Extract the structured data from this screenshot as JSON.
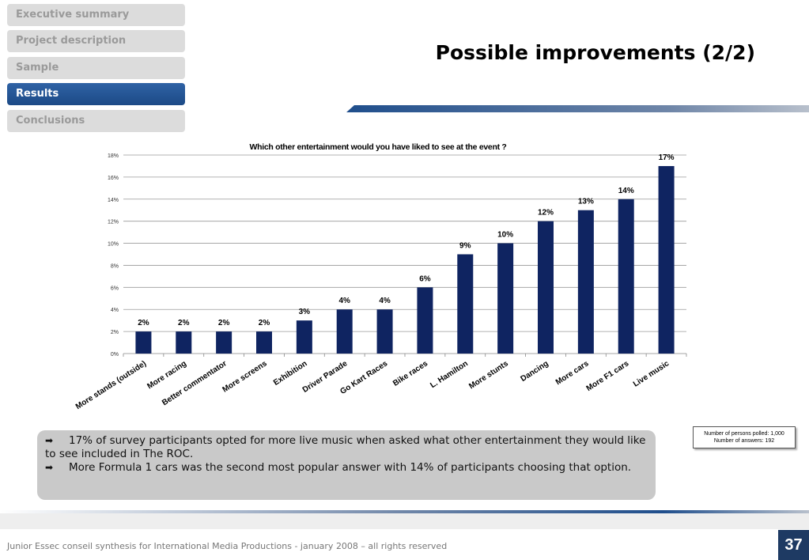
{
  "nav": {
    "items": [
      {
        "label": "Executive summary",
        "active": false
      },
      {
        "label": "Project description",
        "active": false
      },
      {
        "label": "Sample",
        "active": false
      },
      {
        "label": "Results",
        "active": true
      },
      {
        "label": "Conclusions",
        "active": false
      }
    ]
  },
  "page": {
    "title": "Possible improvements (2/2)"
  },
  "colors": {
    "bar": "#0f2461",
    "nav_active": "#1f4e8c",
    "page_number_bg": "#1e3a63"
  },
  "chart_data": {
    "type": "bar",
    "title": "Which other entertainment would you have liked to see at the event ?",
    "categories": [
      "More stands (outside)",
      "More racing",
      "Better commentator",
      "More screens",
      "Exhibition",
      "Driver Parade",
      "Go Kart Races",
      "Bike races",
      "L. Hamilton",
      "More stunts",
      "Dancing",
      "More cars",
      "More F1 cars",
      "Live music"
    ],
    "values": [
      2,
      2,
      2,
      2,
      3,
      4,
      4,
      6,
      9,
      10,
      12,
      13,
      14,
      17
    ],
    "data_labels": [
      "2%",
      "2%",
      "2%",
      "2%",
      "3%",
      "4%",
      "4%",
      "6%",
      "9%",
      "10%",
      "12%",
      "13%",
      "14%",
      "17%"
    ],
    "y_ticks": [
      "0%",
      "2%",
      "4%",
      "6%",
      "8%",
      "10%",
      "12%",
      "14%",
      "16%",
      "18%"
    ],
    "ylim": [
      0,
      18
    ],
    "grid": true,
    "xlabel": "",
    "ylabel": ""
  },
  "note": {
    "line1": "Number of persons polled: 1,000",
    "line2": "Number of answers: 192"
  },
  "summary": {
    "bullet_icon": "arrow-right-icon",
    "point1": "17% of survey participants opted for more live music when asked what other entertainment they would like to see included in The ROC.",
    "point2": "More Formula 1 cars was the second most popular answer with 14% of participants choosing that option."
  },
  "footer": {
    "text": "Junior Essec conseil synthesis for International Media Productions - january 2008 – all rights reserved",
    "page_number": "37"
  }
}
